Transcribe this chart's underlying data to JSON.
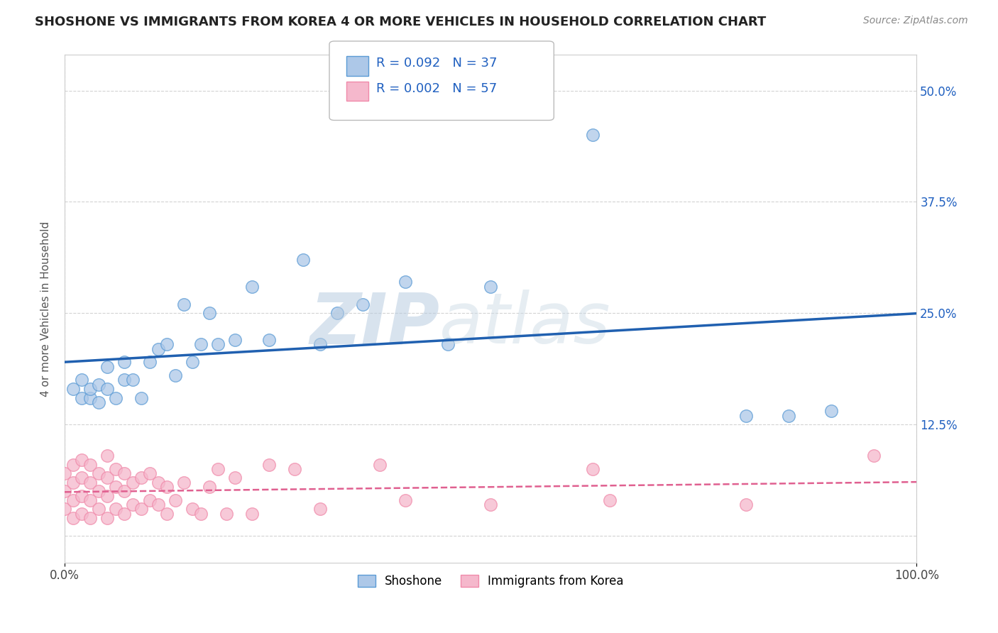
{
  "title": "SHOSHONE VS IMMIGRANTS FROM KOREA 4 OR MORE VEHICLES IN HOUSEHOLD CORRELATION CHART",
  "source": "Source: ZipAtlas.com",
  "ylabel": "4 or more Vehicles in Household",
  "xlim": [
    0.0,
    1.0
  ],
  "ylim": [
    -0.03,
    0.54
  ],
  "xticks": [
    0.0,
    1.0
  ],
  "xticklabels": [
    "0.0%",
    "100.0%"
  ],
  "yticks": [
    0.0,
    0.125,
    0.25,
    0.375,
    0.5
  ],
  "yticklabels_right": [
    "",
    "12.5%",
    "25.0%",
    "37.5%",
    "50.0%"
  ],
  "legend_labels": [
    "Shoshone",
    "Immigrants from Korea"
  ],
  "shoshone_color": "#adc8e8",
  "korea_color": "#f5b8cc",
  "shoshone_edge_color": "#5b9bd5",
  "korea_edge_color": "#f08aaa",
  "shoshone_line_color": "#2060b0",
  "korea_line_color": "#e06090",
  "R_shoshone": 0.092,
  "N_shoshone": 37,
  "R_korea": 0.002,
  "N_korea": 57,
  "shoshone_scatter_x": [
    0.01,
    0.02,
    0.02,
    0.03,
    0.03,
    0.04,
    0.04,
    0.05,
    0.05,
    0.06,
    0.07,
    0.07,
    0.08,
    0.09,
    0.1,
    0.11,
    0.12,
    0.13,
    0.14,
    0.15,
    0.16,
    0.17,
    0.18,
    0.2,
    0.22,
    0.24,
    0.28,
    0.3,
    0.32,
    0.35,
    0.4,
    0.45,
    0.5,
    0.62,
    0.8,
    0.85,
    0.9
  ],
  "shoshone_scatter_y": [
    0.165,
    0.155,
    0.175,
    0.155,
    0.165,
    0.17,
    0.15,
    0.165,
    0.19,
    0.155,
    0.195,
    0.175,
    0.175,
    0.155,
    0.195,
    0.21,
    0.215,
    0.18,
    0.26,
    0.195,
    0.215,
    0.25,
    0.215,
    0.22,
    0.28,
    0.22,
    0.31,
    0.215,
    0.25,
    0.26,
    0.285,
    0.215,
    0.28,
    0.45,
    0.135,
    0.135,
    0.14
  ],
  "korea_scatter_x": [
    0.0,
    0.0,
    0.0,
    0.01,
    0.01,
    0.01,
    0.01,
    0.02,
    0.02,
    0.02,
    0.02,
    0.03,
    0.03,
    0.03,
    0.03,
    0.04,
    0.04,
    0.04,
    0.05,
    0.05,
    0.05,
    0.05,
    0.06,
    0.06,
    0.06,
    0.07,
    0.07,
    0.07,
    0.08,
    0.08,
    0.09,
    0.09,
    0.1,
    0.1,
    0.11,
    0.11,
    0.12,
    0.12,
    0.13,
    0.14,
    0.15,
    0.16,
    0.17,
    0.18,
    0.19,
    0.2,
    0.22,
    0.24,
    0.27,
    0.3,
    0.37,
    0.4,
    0.5,
    0.62,
    0.64,
    0.8,
    0.95
  ],
  "korea_scatter_y": [
    0.03,
    0.05,
    0.07,
    0.02,
    0.04,
    0.06,
    0.08,
    0.025,
    0.045,
    0.065,
    0.085,
    0.02,
    0.04,
    0.06,
    0.08,
    0.03,
    0.05,
    0.07,
    0.02,
    0.045,
    0.065,
    0.09,
    0.03,
    0.055,
    0.075,
    0.025,
    0.05,
    0.07,
    0.035,
    0.06,
    0.03,
    0.065,
    0.04,
    0.07,
    0.035,
    0.06,
    0.025,
    0.055,
    0.04,
    0.06,
    0.03,
    0.025,
    0.055,
    0.075,
    0.025,
    0.065,
    0.025,
    0.08,
    0.075,
    0.03,
    0.08,
    0.04,
    0.035,
    0.075,
    0.04,
    0.035,
    0.09
  ],
  "background_color": "#ffffff",
  "grid_color": "#c8c8c8",
  "watermark_zip": "ZIP",
  "watermark_atlas": "atlas",
  "watermark_color": "#c8d8e8"
}
